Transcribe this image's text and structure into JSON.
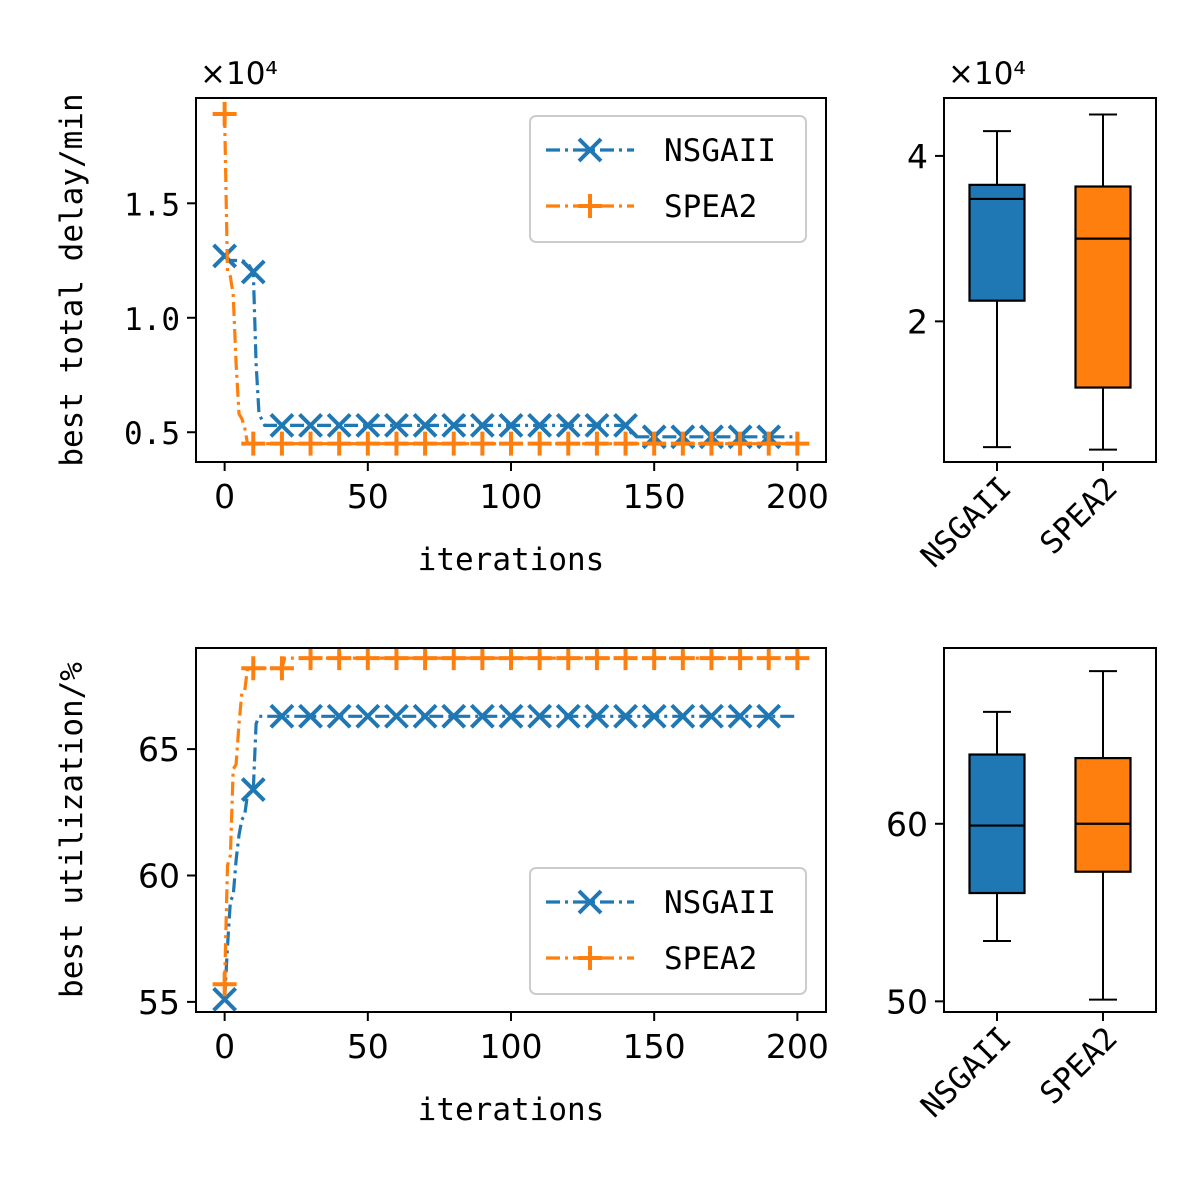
{
  "colors": {
    "nsga": "#1f77b4",
    "spea": "#ff7f0e",
    "axis": "#000000",
    "legend_edge": "#cccccc"
  },
  "chart_data": [
    {
      "type": "line",
      "id": "delay-line",
      "xlabel": "iterations",
      "ylabel": "best total delay/min",
      "multiplier_label": "×10⁴",
      "xlim": [
        -10,
        210
      ],
      "ylim": [
        0.37,
        1.96
      ],
      "xticks": [
        0,
        50,
        100,
        150,
        200
      ],
      "xtick_labels": [
        "0",
        "50",
        "100",
        "150",
        "200"
      ],
      "yticks": [
        0.5,
        1.0,
        1.5
      ],
      "ytick_labels": [
        "0.5",
        "1.0",
        "1.5"
      ],
      "legend_position": "upper right",
      "series": [
        {
          "name": "NSGAII",
          "marker": "x",
          "x": [
            0,
            10,
            20,
            30,
            40,
            50,
            60,
            70,
            80,
            90,
            100,
            110,
            120,
            130,
            140,
            150,
            160,
            170,
            180,
            190
          ],
          "y": [
            1.27,
            1.2,
            0.53,
            0.53,
            0.53,
            0.53,
            0.53,
            0.53,
            0.53,
            0.53,
            0.53,
            0.53,
            0.53,
            0.53,
            0.53,
            0.48,
            0.48,
            0.48,
            0.48,
            0.48
          ],
          "line_x": [
            0,
            1,
            2,
            4,
            6,
            8,
            10,
            11,
            12,
            14,
            20,
            140,
            143,
            150,
            200
          ],
          "line_y": [
            1.27,
            1.26,
            1.25,
            1.25,
            1.25,
            1.24,
            1.2,
            0.8,
            0.58,
            0.53,
            0.53,
            0.53,
            0.48,
            0.48,
            0.48
          ]
        },
        {
          "name": "SPEA2",
          "marker": "+",
          "x": [
            0,
            10,
            20,
            30,
            40,
            50,
            60,
            70,
            80,
            90,
            100,
            110,
            120,
            130,
            140,
            150,
            160,
            170,
            180,
            190,
            200
          ],
          "y": [
            1.89,
            0.45,
            0.45,
            0.45,
            0.45,
            0.45,
            0.45,
            0.45,
            0.45,
            0.45,
            0.45,
            0.45,
            0.45,
            0.45,
            0.45,
            0.45,
            0.45,
            0.45,
            0.45,
            0.45,
            0.45
          ],
          "line_x": [
            0,
            1,
            2,
            3,
            4,
            5,
            6,
            7,
            8,
            10,
            200
          ],
          "line_y": [
            1.89,
            1.2,
            1.18,
            1.1,
            0.8,
            0.58,
            0.56,
            0.52,
            0.45,
            0.45,
            0.45
          ]
        }
      ]
    },
    {
      "type": "box",
      "id": "delay-box",
      "multiplier_label": "×10⁴",
      "ylim": [
        0.3,
        4.7
      ],
      "yticks": [
        2,
        4
      ],
      "ytick_labels": [
        "2",
        "4"
      ],
      "categories": [
        "NSGAII",
        "SPEA2"
      ],
      "boxes": [
        {
          "name": "NSGAII",
          "whisker_low": 0.48,
          "q1": 2.25,
          "median": 3.48,
          "q3": 3.65,
          "whisker_high": 4.3
        },
        {
          "name": "SPEA2",
          "whisker_low": 0.45,
          "q1": 1.2,
          "median": 3.0,
          "q3": 3.63,
          "whisker_high": 4.5
        }
      ]
    },
    {
      "type": "line",
      "id": "util-line",
      "xlabel": "iterations",
      "ylabel": "best utilization/%",
      "xlim": [
        -10,
        210
      ],
      "ylim": [
        54.6,
        69.0
      ],
      "xticks": [
        0,
        50,
        100,
        150,
        200
      ],
      "xtick_labels": [
        "0",
        "50",
        "100",
        "150",
        "200"
      ],
      "yticks": [
        55,
        60,
        65
      ],
      "ytick_labels": [
        "55",
        "60",
        "65"
      ],
      "legend_position": "lower right",
      "series": [
        {
          "name": "NSGAII",
          "marker": "x",
          "x": [
            0,
            10,
            20,
            30,
            40,
            50,
            60,
            70,
            80,
            90,
            100,
            110,
            120,
            130,
            140,
            150,
            160,
            170,
            180,
            190
          ],
          "y": [
            55.1,
            63.4,
            66.3,
            66.3,
            66.3,
            66.3,
            66.3,
            66.3,
            66.3,
            66.3,
            66.3,
            66.3,
            66.3,
            66.3,
            66.3,
            66.3,
            66.3,
            66.3,
            66.3,
            66.3
          ],
          "line_x": [
            0,
            1,
            2,
            3,
            4,
            5,
            6,
            7,
            8,
            10,
            11,
            12,
            200
          ],
          "line_y": [
            55.1,
            57.2,
            59.0,
            59.2,
            60.6,
            61.6,
            62.2,
            62.4,
            63.2,
            63.4,
            66.0,
            66.3,
            66.3
          ]
        },
        {
          "name": "SPEA2",
          "marker": "+",
          "x": [
            0,
            10,
            20,
            30,
            40,
            50,
            60,
            70,
            80,
            90,
            100,
            110,
            120,
            130,
            140,
            150,
            160,
            170,
            180,
            190,
            200
          ],
          "y": [
            55.7,
            68.2,
            68.2,
            68.6,
            68.6,
            68.6,
            68.6,
            68.6,
            68.6,
            68.6,
            68.6,
            68.6,
            68.6,
            68.6,
            68.6,
            68.6,
            68.6,
            68.6,
            68.6,
            68.6,
            68.6
          ],
          "line_x": [
            0,
            1,
            2,
            3,
            4,
            5,
            6,
            7,
            8,
            10,
            20,
            21,
            22,
            200
          ],
          "line_y": [
            55.7,
            60.4,
            60.8,
            64.2,
            64.4,
            66.0,
            67.2,
            67.3,
            68.2,
            68.2,
            68.2,
            68.6,
            68.6,
            68.6
          ]
        }
      ]
    },
    {
      "type": "box",
      "id": "util-box",
      "ylim": [
        49.4,
        69.9
      ],
      "yticks": [
        50,
        60
      ],
      "ytick_labels": [
        "50",
        "60"
      ],
      "categories": [
        "NSGAII",
        "SPEA2"
      ],
      "boxes": [
        {
          "name": "NSGAII",
          "whisker_low": 53.4,
          "q1": 56.1,
          "median": 59.9,
          "q3": 63.9,
          "whisker_high": 66.3
        },
        {
          "name": "SPEA2",
          "whisker_low": 50.1,
          "q1": 57.3,
          "median": 60.0,
          "q3": 63.7,
          "whisker_high": 68.6
        }
      ]
    }
  ]
}
